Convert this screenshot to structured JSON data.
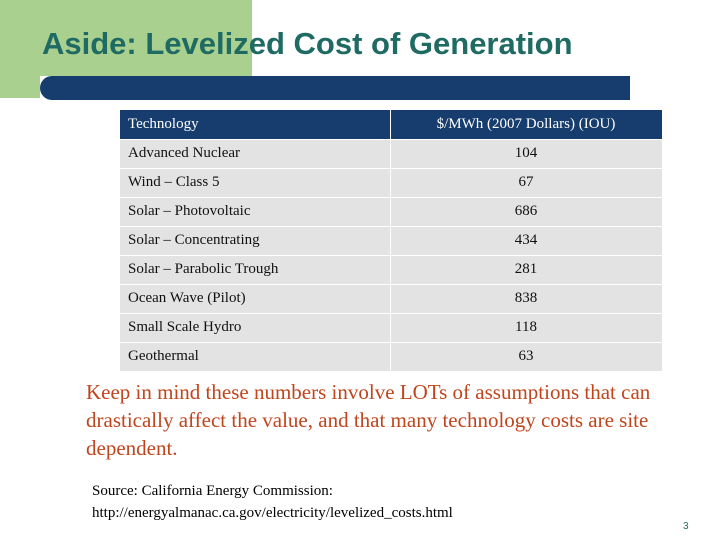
{
  "slide": {
    "title": "Aside: Levelized Cost of Generation",
    "page_number": "3"
  },
  "table": {
    "headers": [
      "Technology",
      "$/MWh (2007 Dollars) (IOU)"
    ],
    "rows": [
      {
        "technology": "Advanced Nuclear",
        "cost": "104"
      },
      {
        "technology": "Wind – Class 5",
        "cost": "67"
      },
      {
        "technology": "Solar – Photovoltaic",
        "cost": "686"
      },
      {
        "technology": "Solar – Concentrating",
        "cost": "434"
      },
      {
        "technology": "Solar – Parabolic Trough",
        "cost": "281"
      },
      {
        "technology": "Ocean Wave (Pilot)",
        "cost": "838"
      },
      {
        "technology": "Small Scale Hydro",
        "cost": "118"
      },
      {
        "technology": "Geothermal",
        "cost": "63"
      }
    ]
  },
  "note": "Keep in mind these numbers involve LOTs of assumptions that can drastically affect the value, and that many technology costs are site dependent.",
  "source": {
    "line1": "Source: California Energy Commission:",
    "line2": "http://energyalmanac.ca.gov/electricity/levelized_costs.html"
  },
  "colors": {
    "accent_green": "#a9d08e",
    "title_teal": "#1f6b63",
    "navy": "#163d6d",
    "note_orange": "#c0451d",
    "row_gray": "#e3e3e3"
  }
}
